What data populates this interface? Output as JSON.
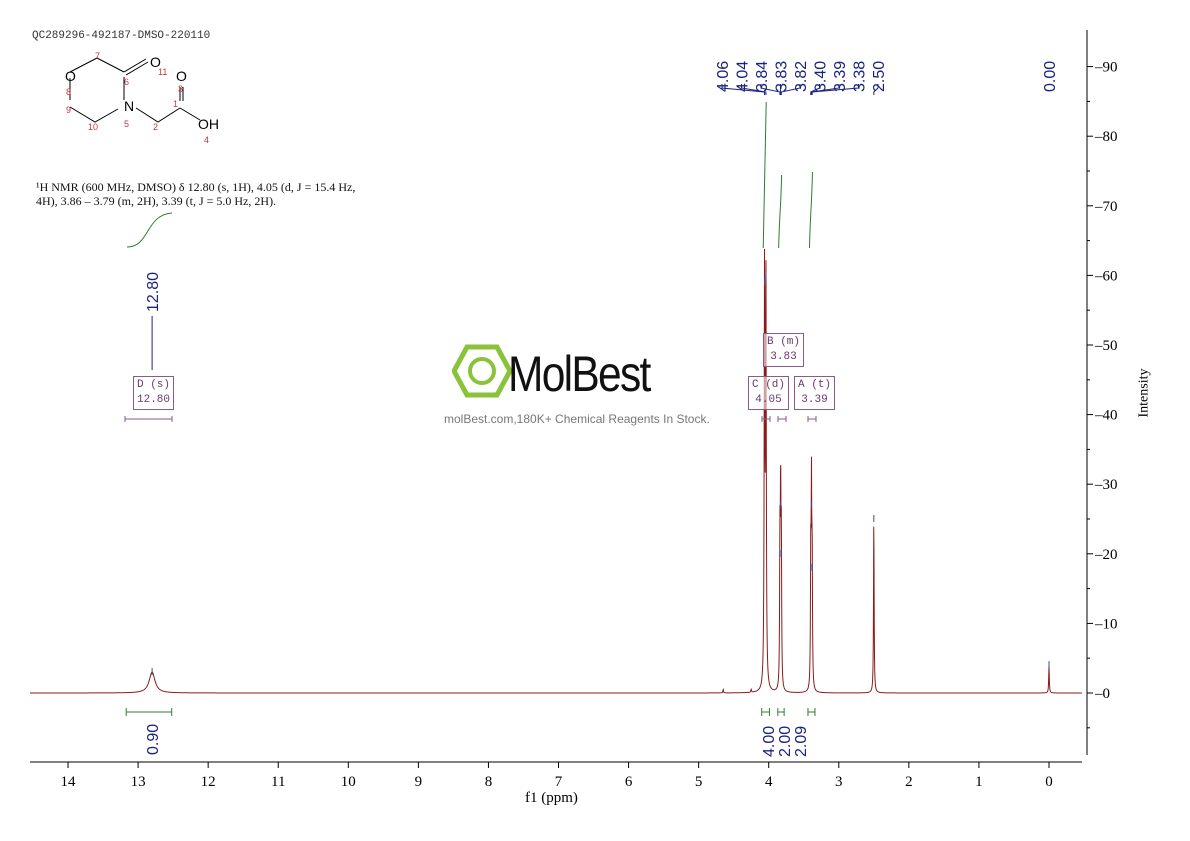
{
  "sample_id": "QC289296-492187-DMSO-220110",
  "description_line1": "¹H NMR (600 MHz, DMSO) δ 12.80 (s, 1H), 4.05 (d, J = 15.4 Hz,",
  "description_line2": "4H), 3.86 – 3.79 (m, 2H), 3.39 (t, J = 5.0 Hz, 2H).",
  "watermark": {
    "logo": "MolBest",
    "tagline": "molBest.com,180K+ Chemical Reagents In Stock."
  },
  "structure_atoms": [
    "O",
    "N",
    "O",
    "O",
    "OH"
  ],
  "multiplets": [
    {
      "label": "D (s)",
      "shift": "12.80"
    },
    {
      "label": "B (m)",
      "shift": "3.83"
    },
    {
      "label": "C (d)",
      "shift": "4.05"
    },
    {
      "label": "A (t)",
      "shift": "3.39"
    }
  ],
  "chart_data": {
    "type": "line",
    "xlabel": "f1 (ppm)",
    "ylabel": "Intensity",
    "xlim": [
      14.57,
      -0.47
    ],
    "ylim": [
      -10,
      95
    ],
    "xticks": [
      "14",
      "13",
      "12",
      "11",
      "10",
      "9",
      "8",
      "7",
      "6",
      "5",
      "4",
      "3",
      "2",
      "1",
      "0"
    ],
    "yticks": [
      "0",
      "10",
      "20",
      "30",
      "40",
      "50",
      "60",
      "70",
      "80",
      "90"
    ],
    "peaks": [
      {
        "ppm": 12.8,
        "height": 3,
        "width": 0.05
      },
      {
        "ppm": 4.06,
        "height": 59,
        "width": 0.006
      },
      {
        "ppm": 4.04,
        "height": 60,
        "width": 0.006
      },
      {
        "ppm": 3.84,
        "height": 20,
        "width": 0.005
      },
      {
        "ppm": 3.83,
        "height": 27,
        "width": 0.005
      },
      {
        "ppm": 3.82,
        "height": 20,
        "width": 0.005
      },
      {
        "ppm": 3.4,
        "height": 18,
        "width": 0.005
      },
      {
        "ppm": 3.39,
        "height": 27,
        "width": 0.005
      },
      {
        "ppm": 3.38,
        "height": 18,
        "width": 0.005
      },
      {
        "ppm": 2.5,
        "height": 25,
        "width": 0.005
      },
      {
        "ppm": 0.0,
        "height": 4,
        "width": 0.005
      },
      {
        "ppm": 4.65,
        "height": 0.5,
        "width": 0.005
      },
      {
        "ppm": 4.25,
        "height": 0.5,
        "width": 0.005
      }
    ],
    "peak_labels": [
      "4.06",
      "4.04",
      "3.84",
      "3.83",
      "3.82",
      "3.40",
      "3.39",
      "3.38",
      "2.50",
      "12.80",
      "0.00"
    ],
    "integrals": [
      {
        "ppm": 12.8,
        "value": "0.90",
        "from": 13.17,
        "to": 12.52
      },
      {
        "ppm": 4.05,
        "value": "4.00",
        "from": 4.1,
        "to": 3.99
      },
      {
        "ppm": 3.83,
        "value": "2.00",
        "from": 3.87,
        "to": 3.78
      },
      {
        "ppm": 3.39,
        "value": "2.09",
        "from": 3.44,
        "to": 3.34
      }
    ]
  }
}
